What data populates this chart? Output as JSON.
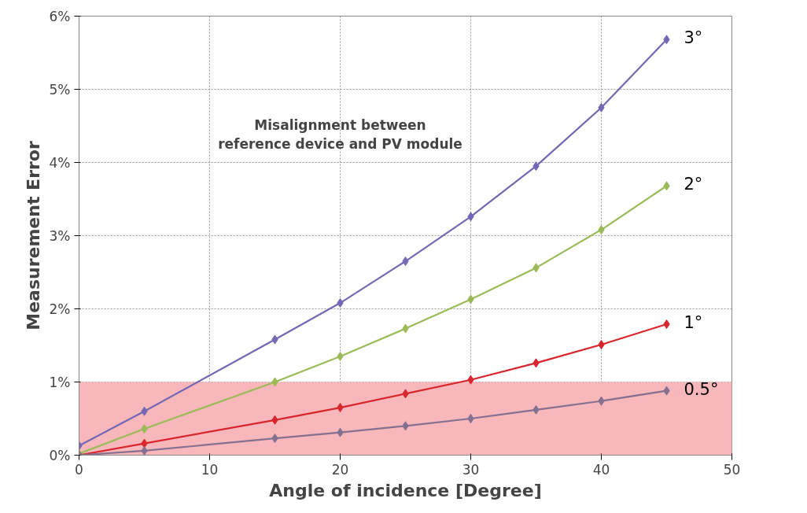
{
  "chart_data": {
    "type": "line",
    "xlabel": "Angle of incidence [Degree]",
    "ylabel": "Measurement Error",
    "x": [
      0,
      5,
      15,
      20,
      25,
      30,
      35,
      40,
      45
    ],
    "series": [
      {
        "name": "3°",
        "color": "#7468b4",
        "values": [
          0.13,
          0.6,
          1.58,
          2.08,
          2.65,
          3.26,
          3.95,
          4.75,
          5.68
        ]
      },
      {
        "name": "2°",
        "color": "#9bbb59",
        "values": [
          0.02,
          0.36,
          1.0,
          1.35,
          1.73,
          2.13,
          2.56,
          3.08,
          3.68
        ]
      },
      {
        "name": "1°",
        "color": "#d9262c",
        "values": [
          0,
          0.16,
          0.48,
          0.65,
          0.84,
          1.03,
          1.26,
          1.51,
          1.79
        ]
      },
      {
        "name": "0.5°",
        "color": "#85708f",
        "values": [
          0,
          0.06,
          0.23,
          0.31,
          0.4,
          0.5,
          0.62,
          0.74,
          0.88
        ]
      }
    ],
    "xlim": [
      0,
      50
    ],
    "xticks": [
      0,
      10,
      20,
      30,
      40,
      50
    ],
    "ylim": [
      0,
      6
    ],
    "yticks": [
      {
        "value": 0,
        "label": "0%"
      },
      {
        "value": 1,
        "label": "1%"
      },
      {
        "value": 2,
        "label": "2%"
      },
      {
        "value": 3,
        "label": "3%"
      },
      {
        "value": 4,
        "label": "4%"
      },
      {
        "value": 5,
        "label": "5%"
      },
      {
        "value": 6,
        "label": "6%"
      }
    ],
    "bands": [
      {
        "axis": "y",
        "from": 0,
        "to": 1,
        "color": "#f7b7bb"
      }
    ],
    "annotations": [
      "Misalignment between\nreference device and PV module"
    ],
    "grid": true,
    "marker": "diamond",
    "line_style": "solid"
  }
}
